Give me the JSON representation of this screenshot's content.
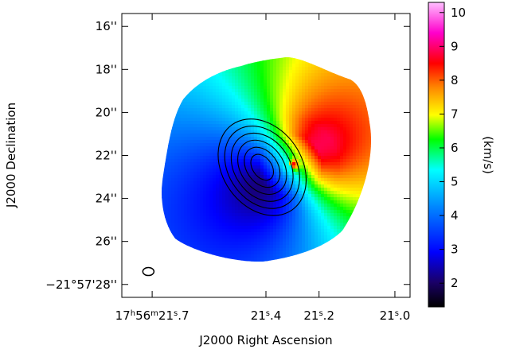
{
  "chart_data": {
    "type": "heatmap",
    "title": "",
    "xlabel": "J2000 Right Ascension",
    "ylabel": "J2000 Declination",
    "colorbar_label": "(km/s)",
    "colorbar_range": [
      1.3,
      10.3
    ],
    "colorbar_ticks": [
      2,
      3,
      4,
      5,
      6,
      7,
      8,
      9,
      10
    ],
    "colormap": [
      "#000000",
      "#1a0066",
      "#0000ff",
      "#0088ff",
      "#00ffff",
      "#00ff00",
      "#ffff00",
      "#ff8800",
      "#ff0000",
      "#ff00cc",
      "#ffc0ff"
    ],
    "x_axis": {
      "unit": "arcsec offset",
      "range": [
        -3.8,
        3.8
      ],
      "ticks": [
        {
          "x": -3.0,
          "label_prefix": "17",
          "hms": [
            "h",
            "m",
            "s"
          ],
          "label_parts": [
            "56",
            "21",
            ".7"
          ]
        },
        {
          "x": -0.0,
          "label_parts": [
            "21",
            ".4"
          ]
        },
        {
          "x": 1.4,
          "label_parts": [
            "21",
            ".2"
          ]
        },
        {
          "x": 3.4,
          "label_parts": [
            "21",
            ".0"
          ]
        }
      ]
    },
    "y_axis": {
      "unit": "arcsec",
      "range": [
        28.6,
        15.4
      ],
      "ticks": [
        {
          "y": 16,
          "label": "16''"
        },
        {
          "y": 18,
          "label": "18''"
        },
        {
          "y": 20,
          "label": "20''"
        },
        {
          "y": 22,
          "label": "22''"
        },
        {
          "y": 24,
          "label": "24''"
        },
        {
          "y": 26,
          "label": "26''"
        },
        {
          "y": 28,
          "label": "−21°57'28''"
        }
      ]
    },
    "velocity_field": {
      "center": [
        0.6,
        22.4
      ],
      "systemic_velocity": 5.5,
      "amplitude": 2.9,
      "rotation_axis_pa_deg": 35,
      "peak_velocity_near_center": 10
    },
    "contours": {
      "center": [
        -0.1,
        22.55
      ],
      "levels": 6,
      "color": "#000000"
    },
    "beam": {
      "x": -3.1,
      "y": 27.4
    }
  }
}
